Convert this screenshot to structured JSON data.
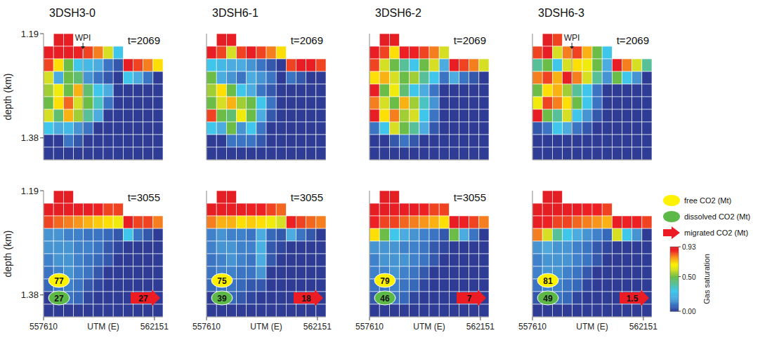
{
  "chart_data": [
    {
      "type": "heatmap",
      "title": "3DSH3-0",
      "time_label": "t=2069",
      "well_label": "WPI",
      "ylabel": "depth (km)",
      "tick_labels": "y",
      "xlim": [
        557610,
        562500
      ],
      "ylim": [
        1.19,
        1.42
      ],
      "yticks": [
        1.19,
        1.38
      ],
      "cells": [
        [
          null,
          0.93,
          0.9,
          null,
          null,
          null,
          null,
          null,
          null,
          null,
          null,
          null
        ],
        [
          0.9,
          0.9,
          0.9,
          0.88,
          0.85,
          0.8,
          0.6,
          0.3,
          null,
          null,
          null,
          null
        ],
        [
          0.85,
          0.7,
          0.5,
          0.3,
          0.25,
          0.2,
          0.1,
          0.05,
          0.9,
          0.85,
          0.8,
          0.7
        ],
        [
          0.6,
          0.2,
          0.5,
          0.45,
          0.15,
          0.1,
          0.05,
          0,
          0.3,
          0.2,
          0.1,
          0
        ],
        [
          0.55,
          0.65,
          0.5,
          0.75,
          0.45,
          0.3,
          0.2,
          0,
          0,
          0,
          0,
          0
        ],
        [
          0.5,
          0.7,
          0.82,
          0.6,
          0.5,
          0.35,
          0.1,
          0,
          0,
          0,
          0,
          0
        ],
        [
          0.6,
          0.45,
          0.75,
          0.55,
          0.4,
          0.2,
          0,
          0,
          0,
          0,
          0,
          0
        ],
        [
          0.3,
          0.2,
          0.25,
          0.15,
          0.1,
          0,
          0,
          0,
          0,
          0,
          0,
          0
        ],
        [
          0,
          0,
          0.1,
          0.05,
          0,
          0,
          0,
          0,
          0,
          0,
          0,
          0
        ],
        [
          0,
          0,
          0,
          0,
          0,
          0,
          0,
          0,
          0,
          0,
          0,
          0
        ]
      ]
    },
    {
      "type": "heatmap",
      "title": "3DSH6-1",
      "time_label": "t=2069",
      "tick_labels": false,
      "xlim": [
        557610,
        562500
      ],
      "ylim": [
        1.19,
        1.42
      ],
      "cells": [
        [
          null,
          0.93,
          0.9,
          null,
          null,
          null,
          null,
          null,
          null,
          null,
          null,
          null
        ],
        [
          0.9,
          0.85,
          0.6,
          0.85,
          0.9,
          0.85,
          0.8,
          0.7,
          null,
          null,
          null,
          null
        ],
        [
          0.3,
          0.25,
          0.2,
          0.2,
          0.15,
          0.1,
          0.05,
          0,
          0.85,
          0.9,
          0.9,
          0.85
        ],
        [
          0.5,
          0.2,
          0.15,
          0.1,
          0.2,
          0.15,
          0.1,
          0,
          0.1,
          0.05,
          0,
          0
        ],
        [
          0.55,
          0.7,
          0.5,
          0.3,
          0.2,
          0.1,
          0.05,
          0,
          0,
          0,
          0,
          0
        ],
        [
          0.5,
          0.6,
          0.75,
          0.55,
          0.5,
          0.3,
          0.1,
          0,
          0,
          0,
          0,
          0
        ],
        [
          0.85,
          0.5,
          0.45,
          0.65,
          0.5,
          0.2,
          0.05,
          0,
          0,
          0,
          0,
          0
        ],
        [
          0.3,
          0.2,
          0.5,
          0.15,
          0.3,
          0.1,
          0,
          0,
          0,
          0,
          0,
          0
        ],
        [
          0,
          0,
          0.1,
          0.1,
          0.1,
          0.05,
          0,
          0,
          0,
          0,
          0,
          0
        ],
        [
          0,
          0,
          0,
          0,
          0,
          0,
          0,
          0,
          0,
          0,
          0,
          0
        ]
      ]
    },
    {
      "type": "heatmap",
      "title": "3DSH6-2",
      "time_label": "t=2069",
      "tick_labels": false,
      "xlim": [
        557610,
        562500
      ],
      "ylim": [
        1.19,
        1.42
      ],
      "cells": [
        [
          null,
          0.93,
          0.92,
          null,
          null,
          null,
          null,
          null,
          null,
          null,
          null,
          null
        ],
        [
          0.9,
          0.85,
          0.7,
          0.88,
          0.88,
          0.85,
          0.8,
          0.6,
          null,
          null,
          null,
          null
        ],
        [
          0.85,
          0.6,
          0.5,
          0.4,
          0.3,
          0.5,
          0.6,
          0.2,
          0.9,
          0.85,
          0.8,
          0.6
        ],
        [
          0.7,
          0.75,
          0.6,
          0.5,
          0.55,
          0.4,
          0.3,
          0.1,
          0.2,
          0.1,
          0.05,
          0
        ],
        [
          0.9,
          0.5,
          0.65,
          0.45,
          0.3,
          0.2,
          0.1,
          0,
          0,
          0,
          0,
          0
        ],
        [
          0.8,
          0.6,
          0.5,
          0.75,
          0.55,
          0.35,
          0.15,
          0,
          0,
          0,
          0,
          0
        ],
        [
          0.9,
          0.7,
          0.8,
          0.55,
          0.6,
          0.3,
          0.1,
          0,
          0,
          0,
          0,
          0
        ],
        [
          0.1,
          0.3,
          0.6,
          0.5,
          0.4,
          0.2,
          0.05,
          0,
          0,
          0,
          0,
          0
        ],
        [
          0,
          0,
          0.05,
          0.1,
          0.05,
          0,
          0,
          0,
          0,
          0,
          0,
          0
        ],
        [
          0,
          0,
          0,
          0,
          0,
          0,
          0,
          0,
          0,
          0,
          0,
          0
        ]
      ]
    },
    {
      "type": "heatmap",
      "title": "3DSH6-3",
      "time_label": "t=2069",
      "well_label": "WPI",
      "tick_labels": false,
      "xlim": [
        557610,
        562500
      ],
      "ylim": [
        1.19,
        1.42
      ],
      "cells": [
        [
          null,
          0.93,
          0.85,
          null,
          null,
          null,
          null,
          null,
          null,
          null,
          null,
          null
        ],
        [
          0.85,
          0.9,
          0.6,
          0.8,
          0.85,
          0.75,
          0.5,
          0.3,
          null,
          null,
          null,
          null
        ],
        [
          0.4,
          0.5,
          0.3,
          0.6,
          0.7,
          0.65,
          0.5,
          0.2,
          0.9,
          0.8,
          0.6,
          0.4
        ],
        [
          0.8,
          0.85,
          0.75,
          0.9,
          0.8,
          0.6,
          0.4,
          0.15,
          0.5,
          0.3,
          0.15,
          0
        ],
        [
          0.5,
          0.7,
          0.75,
          0.55,
          0.4,
          0.3,
          0.1,
          0,
          0,
          0,
          0,
          0
        ],
        [
          0.65,
          0.85,
          0.8,
          0.7,
          0.5,
          0.3,
          0.1,
          0,
          0,
          0,
          0,
          0
        ],
        [
          0.9,
          0.5,
          0.4,
          0.6,
          0.3,
          0.15,
          0.05,
          0,
          0,
          0,
          0,
          0
        ],
        [
          0.05,
          0.1,
          0.3,
          0.2,
          0.1,
          0.05,
          0,
          0,
          0,
          0,
          0,
          0
        ],
        [
          0,
          0,
          0,
          0,
          0,
          0,
          0,
          0,
          0,
          0,
          0,
          0
        ],
        [
          0,
          0,
          0,
          0,
          0,
          0,
          0,
          0,
          0,
          0,
          0,
          0
        ]
      ]
    },
    {
      "type": "heatmap",
      "time_label": "t=3055",
      "ylabel": "depth (km)",
      "xlabel": "UTM (E)",
      "tick_labels": true,
      "xlim": [
        557610,
        562500
      ],
      "ylim": [
        1.19,
        1.42
      ],
      "yticks": [
        1.19,
        1.38
      ],
      "xticks": [
        557610,
        562151
      ],
      "co2_mass": [
        77,
        27,
        27
      ],
      "cells": [
        [
          null,
          0.93,
          0.93,
          null,
          null,
          null,
          null,
          null,
          null,
          null,
          null,
          null
        ],
        [
          0.92,
          0.92,
          0.9,
          0.9,
          0.9,
          0.88,
          0.85,
          0.85,
          null,
          null,
          null,
          null
        ],
        [
          0.85,
          0.82,
          0.8,
          0.78,
          0.75,
          0.72,
          0.7,
          0.65,
          0.9,
          0.85,
          0.85,
          0.8
        ],
        [
          0.15,
          0.15,
          0.12,
          0.12,
          0.1,
          0.1,
          0.08,
          0.05,
          0.3,
          0.1,
          0.05,
          0
        ],
        [
          0.15,
          0.15,
          0.15,
          0.12,
          0.12,
          0.1,
          0.05,
          0.02,
          0,
          0,
          0,
          0
        ],
        [
          0.12,
          0.15,
          0.15,
          0.12,
          0.1,
          0.08,
          0.05,
          0,
          0,
          0,
          0,
          0
        ],
        [
          0.1,
          0.12,
          0.15,
          0.12,
          0.1,
          0.05,
          0,
          0,
          0,
          0,
          0,
          0
        ],
        [
          0.08,
          0.1,
          0.12,
          0.1,
          0.05,
          0.02,
          0,
          0,
          0,
          0,
          0,
          0
        ],
        [
          0,
          0.05,
          0.1,
          0.08,
          0.02,
          0,
          0,
          0,
          0,
          0,
          0,
          0
        ],
        [
          0,
          0,
          0,
          0,
          0,
          0,
          0,
          0,
          0,
          0,
          0,
          0
        ]
      ]
    },
    {
      "type": "heatmap",
      "time_label": "t=3055",
      "xlabel": "UTM (E)",
      "tick_labels": "x",
      "xlim": [
        557610,
        562500
      ],
      "ylim": [
        1.19,
        1.42
      ],
      "xticks": [
        557610,
        562151
      ],
      "co2_mass": [
        75,
        39,
        18
      ],
      "cells": [
        [
          null,
          0.93,
          0.92,
          null,
          null,
          null,
          null,
          null,
          null,
          null,
          null,
          null
        ],
        [
          0.92,
          0.9,
          0.9,
          0.9,
          0.88,
          0.88,
          0.85,
          0.82,
          null,
          null,
          null,
          null
        ],
        [
          0.8,
          0.75,
          0.75,
          0.7,
          0.72,
          0.7,
          0.65,
          0.6,
          0.88,
          0.85,
          0.82,
          0.8
        ],
        [
          0.12,
          0.15,
          0.12,
          0.12,
          0.1,
          0.2,
          0.08,
          0.05,
          0.2,
          0.1,
          0.05,
          0
        ],
        [
          0.12,
          0.15,
          0.15,
          0.12,
          0.12,
          0.22,
          0.05,
          0.02,
          0,
          0,
          0,
          0
        ],
        [
          0.1,
          0.12,
          0.15,
          0.12,
          0.1,
          0.2,
          0.05,
          0,
          0,
          0,
          0,
          0
        ],
        [
          0.1,
          0.12,
          0.12,
          0.1,
          0.1,
          0.15,
          0,
          0,
          0,
          0,
          0,
          0
        ],
        [
          0.08,
          0.1,
          0.1,
          0.08,
          0.05,
          0.05,
          0,
          0,
          0,
          0,
          0,
          0
        ],
        [
          0,
          0.05,
          0.08,
          0.05,
          0.02,
          0,
          0,
          0,
          0,
          0,
          0,
          0
        ],
        [
          0,
          0,
          0,
          0,
          0,
          0,
          0,
          0,
          0,
          0,
          0,
          0
        ]
      ]
    },
    {
      "type": "heatmap",
      "time_label": "t=3055",
      "xlabel": "UTM (E)",
      "tick_labels": "x",
      "xlim": [
        557610,
        562500
      ],
      "ylim": [
        1.19,
        1.42
      ],
      "xticks": [
        557610,
        562151
      ],
      "co2_mass": [
        79,
        46,
        7
      ],
      "cells": [
        [
          null,
          0.93,
          0.93,
          null,
          null,
          null,
          null,
          null,
          null,
          null,
          null,
          null
        ],
        [
          0.92,
          0.92,
          0.9,
          0.9,
          0.9,
          0.88,
          0.85,
          0.85,
          null,
          null,
          null,
          null
        ],
        [
          0.88,
          0.85,
          0.85,
          0.82,
          0.8,
          0.78,
          0.75,
          0.7,
          0.9,
          0.88,
          0.85,
          0.8
        ],
        [
          0.7,
          0.5,
          0.3,
          0.2,
          0.15,
          0.12,
          0.1,
          0.05,
          0.5,
          0.2,
          0.1,
          0
        ],
        [
          0.15,
          0.15,
          0.15,
          0.12,
          0.12,
          0.1,
          0.05,
          0.02,
          0,
          0,
          0,
          0
        ],
        [
          0.12,
          0.15,
          0.15,
          0.15,
          0.12,
          0.1,
          0.05,
          0,
          0,
          0,
          0,
          0
        ],
        [
          0.12,
          0.12,
          0.15,
          0.12,
          0.1,
          0.05,
          0,
          0,
          0,
          0,
          0,
          0
        ],
        [
          0.1,
          0.1,
          0.12,
          0.1,
          0.08,
          0.02,
          0,
          0,
          0,
          0,
          0,
          0
        ],
        [
          0.05,
          0.05,
          0.1,
          0.08,
          0.02,
          0,
          0,
          0,
          0,
          0,
          0,
          0
        ],
        [
          0,
          0,
          0,
          0,
          0,
          0,
          0,
          0,
          0,
          0,
          0,
          0
        ]
      ]
    },
    {
      "type": "heatmap",
      "xlabel": "UTM (E)",
      "tick_labels": "x",
      "xlim": [
        557610,
        562500
      ],
      "ylim": [
        1.19,
        1.42
      ],
      "xticks": [
        557610,
        562151
      ],
      "co2_mass": [
        81,
        49,
        1.5
      ],
      "cells": [
        [
          null,
          0.93,
          0.93,
          null,
          null,
          null,
          null,
          null,
          null,
          null,
          null,
          null
        ],
        [
          0.92,
          0.92,
          0.92,
          0.9,
          0.9,
          0.88,
          0.88,
          0.85,
          null,
          null,
          null,
          null
        ],
        [
          0.9,
          0.88,
          0.85,
          0.85,
          0.82,
          0.8,
          0.78,
          0.75,
          0.9,
          0.88,
          0.88,
          0.85
        ],
        [
          0.8,
          0.6,
          0.4,
          0.3,
          0.2,
          0.15,
          0.12,
          0.08,
          0.6,
          0.3,
          0.15,
          0
        ],
        [
          0.15,
          0.18,
          0.15,
          0.15,
          0.12,
          0.1,
          0.05,
          0.02,
          0,
          0,
          0,
          0
        ],
        [
          0.12,
          0.15,
          0.15,
          0.15,
          0.12,
          0.1,
          0.05,
          0,
          0,
          0,
          0,
          0
        ],
        [
          0.12,
          0.15,
          0.15,
          0.12,
          0.1,
          0.05,
          0,
          0,
          0,
          0,
          0,
          0
        ],
        [
          0.1,
          0.12,
          0.12,
          0.1,
          0.08,
          0.02,
          0,
          0,
          0,
          0,
          0,
          0
        ],
        [
          0.05,
          0.08,
          0.1,
          0.08,
          0.02,
          0,
          0,
          0,
          0,
          0,
          0,
          0
        ],
        [
          0,
          0,
          0,
          0,
          0,
          0,
          0,
          0,
          0,
          0,
          0,
          0
        ]
      ]
    }
  ],
  "co2_legend": [
    {
      "name": "free CO2 (Mt)",
      "color": "#fff200",
      "marker": "ellipse"
    },
    {
      "name": "dissolved CO2 (Mt)",
      "color": "#5cb947",
      "marker": "ellipse"
    },
    {
      "name": "migrated CO2 (Mt)",
      "color": "#ed1c24",
      "marker": "arrow"
    }
  ],
  "colorbar": {
    "label": "Gas saturation",
    "range": [
      0,
      0.93
    ],
    "ticks": [
      {
        "value": 0,
        "label": "0.00"
      },
      {
        "value": 0.5,
        "label": "0.50"
      },
      0.93
    ]
  }
}
